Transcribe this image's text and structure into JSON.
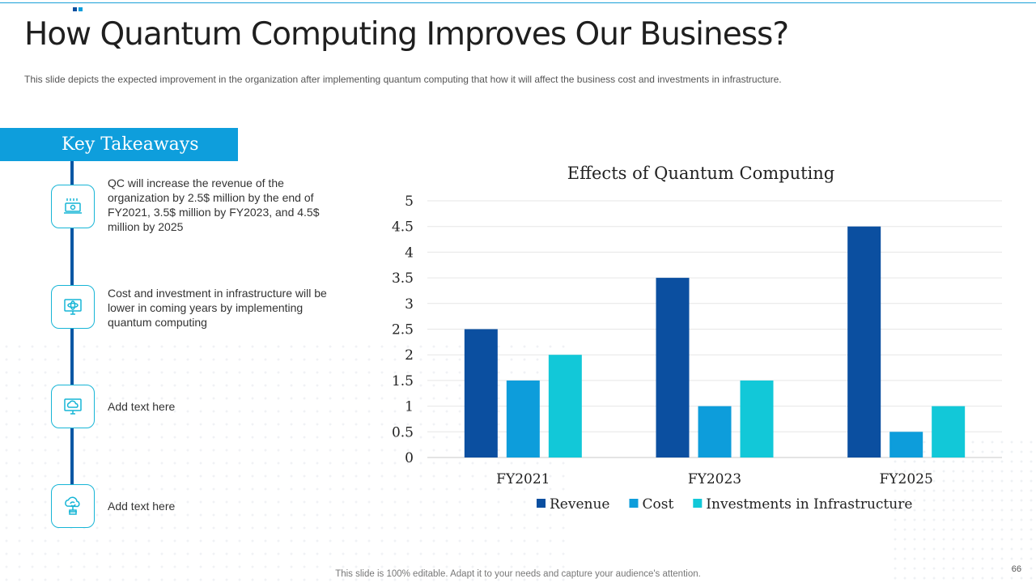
{
  "title": "How Quantum Computing Improves Our Business?",
  "subtitle": "This slide depicts the expected improvement  in the organization  after implementing  quantum computing that how it will affect the business cost and investments in infrastructure.",
  "takeaways": {
    "header": "Key Takeaways",
    "items": [
      {
        "icon": "money-icon",
        "text": "QC will increase the revenue of the organization by 2.5$ million by the end of FY2021, 3.5$ million by FY2023, and 4.5$ million by 2025"
      },
      {
        "icon": "atom-monitor-icon",
        "text": "Cost and investment in infrastructure will be lower in coming years by implementing quantum computing"
      },
      {
        "icon": "cloud-monitor-icon",
        "text": "Add text here"
      },
      {
        "icon": "cloud-sync-icon",
        "text": "Add text here"
      }
    ]
  },
  "chart_data": {
    "type": "bar",
    "title": "Effects of Quantum Computing",
    "categories": [
      "FY2021",
      "FY2023",
      "FY2025"
    ],
    "series": [
      {
        "name": "Revenue",
        "values": [
          2.5,
          3.5,
          4.5
        ],
        "color": "#0b4fa0"
      },
      {
        "name": "Cost",
        "values": [
          1.5,
          1,
          0.5
        ],
        "color": "#0d9ddb"
      },
      {
        "name": "Investments in Infrastructure",
        "values": [
          2,
          1.5,
          1
        ],
        "color": "#12c8d8"
      }
    ],
    "ylim": [
      0,
      5
    ],
    "yticks": [
      "0",
      "0.5",
      "1",
      "1.5",
      "2",
      "2.5",
      "3",
      "3.5",
      "4",
      "4.5",
      "5"
    ],
    "xlabel": "",
    "ylabel": "",
    "legend": "bottom"
  },
  "footer": "This slide is 100% editable. Adapt it to your needs and capture your audience's attention.",
  "page_number": "66",
  "colors": {
    "accent": "#0e9edc",
    "dark_blue": "#0b57a4",
    "icon_border": "#17b5d6"
  }
}
